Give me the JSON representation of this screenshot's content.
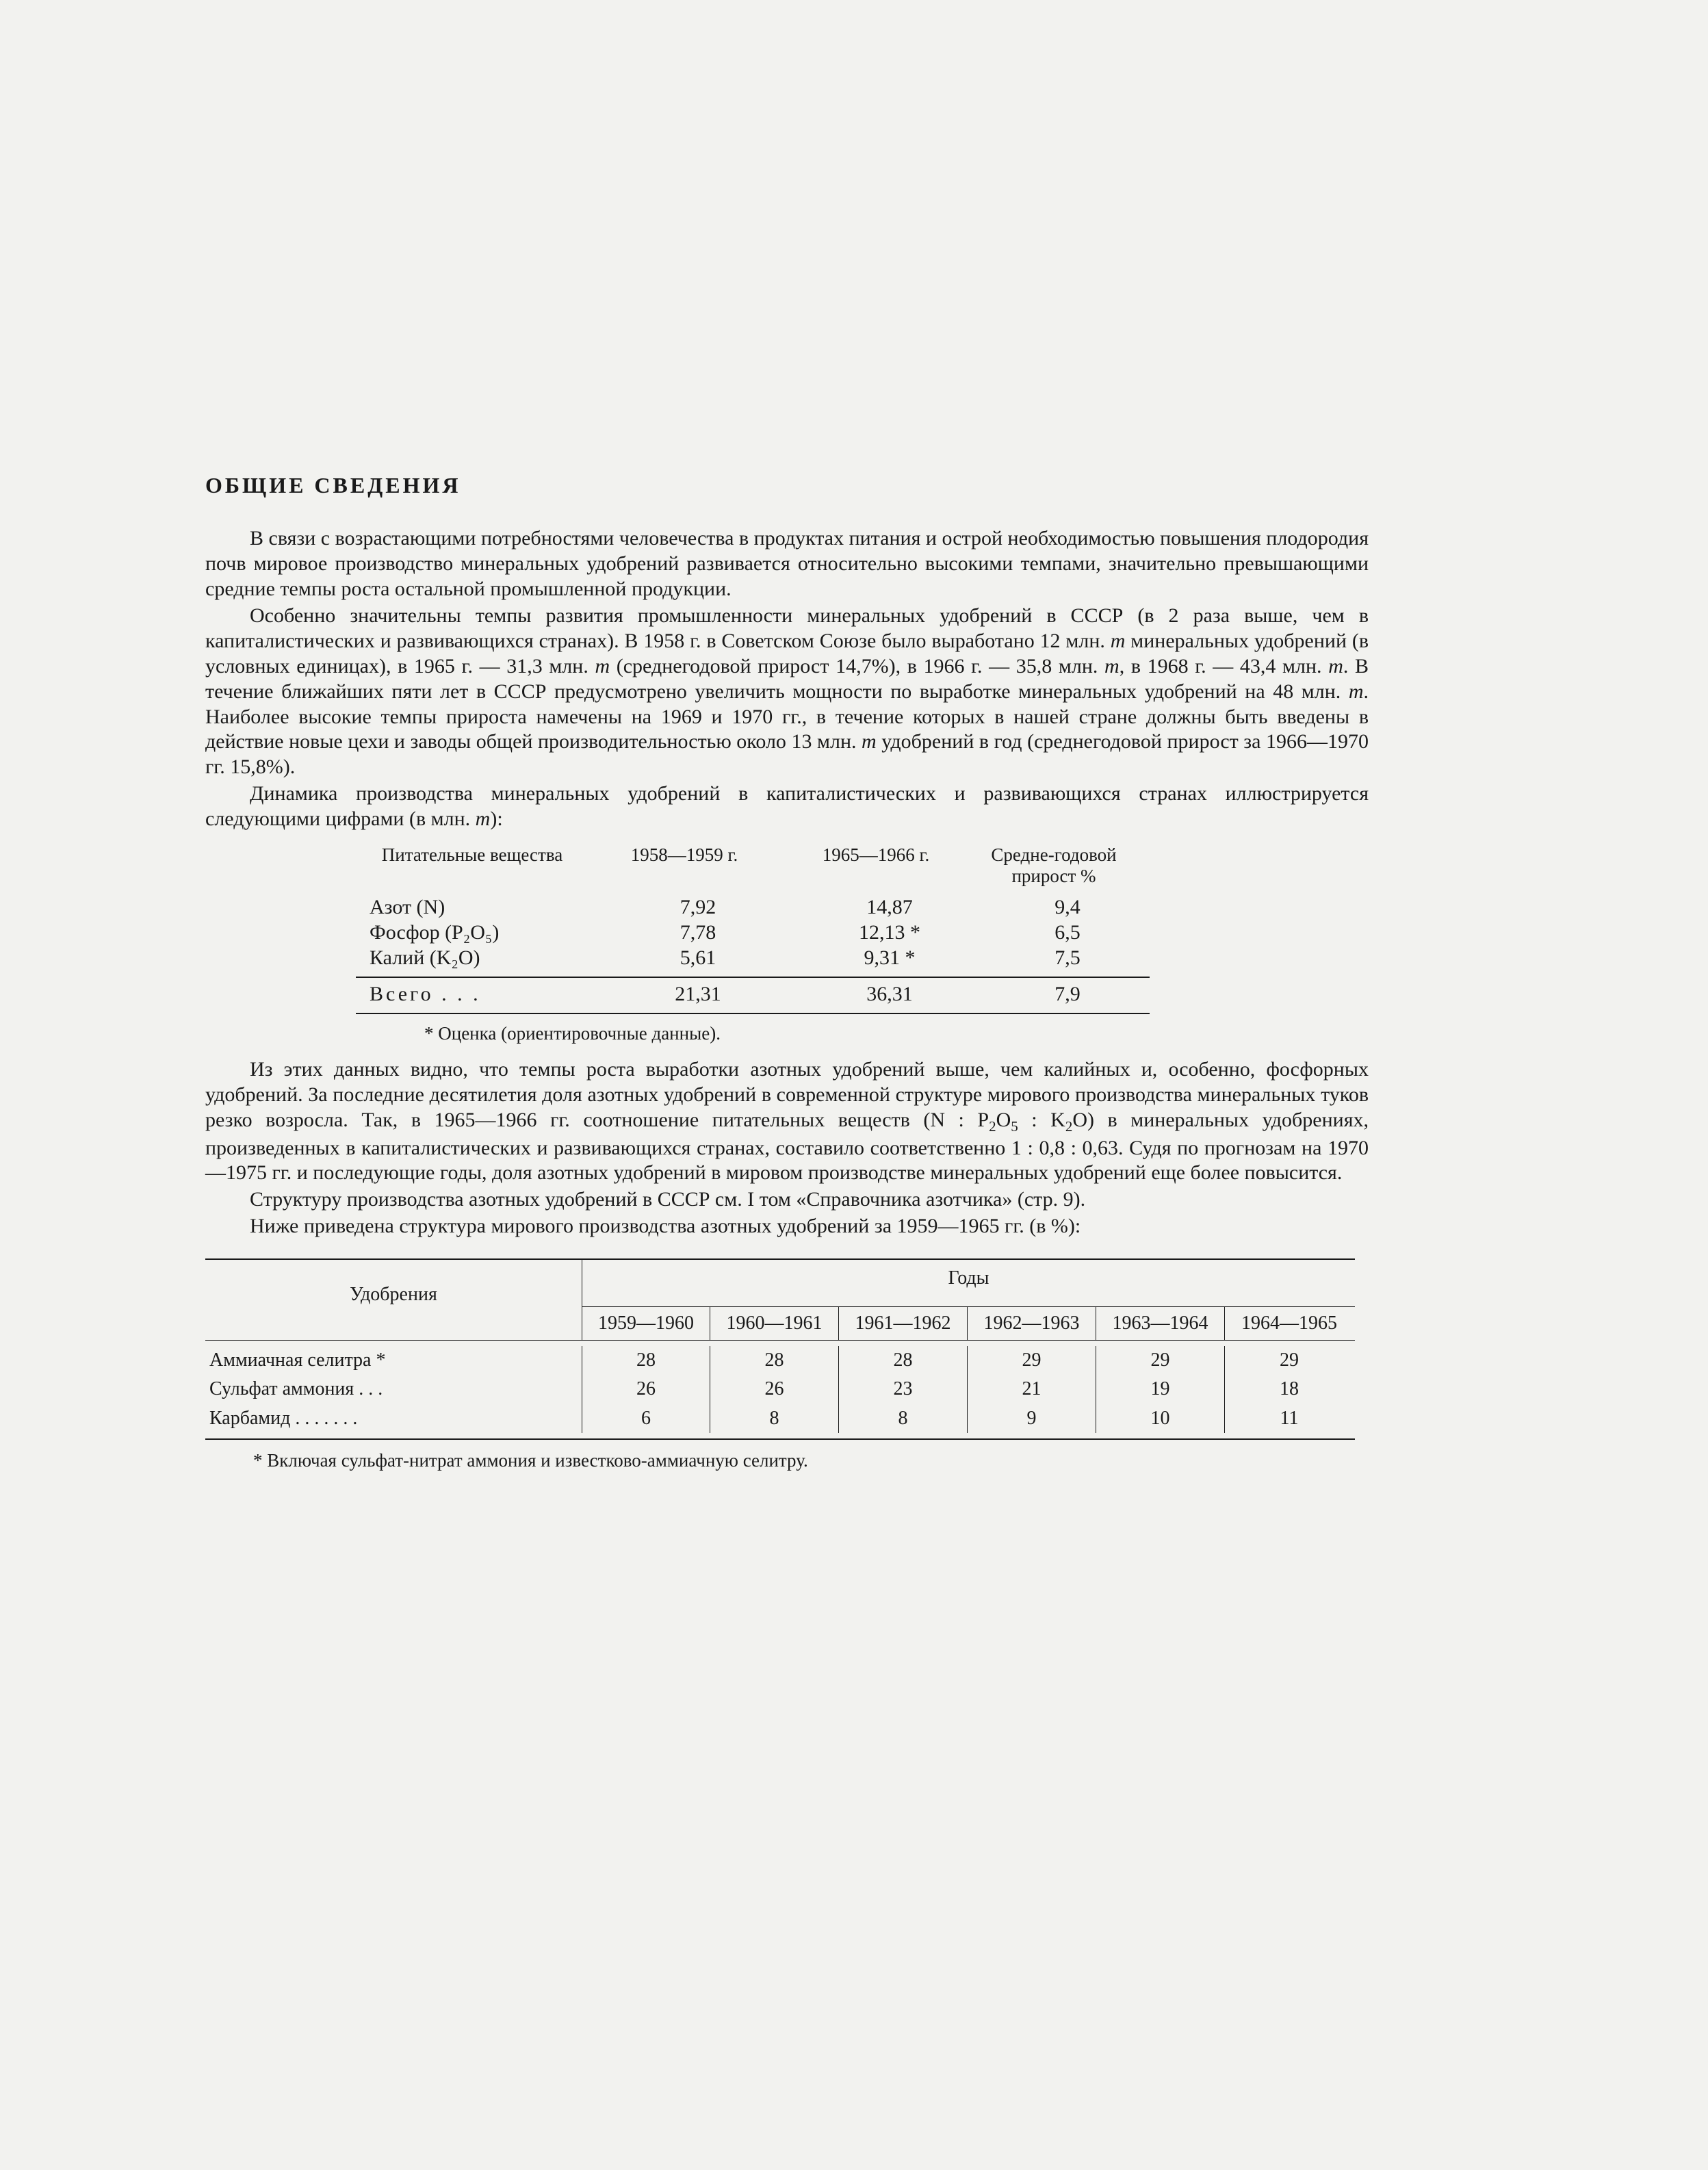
{
  "heading": "ОБЩИЕ СВЕДЕНИЯ",
  "para1": "В связи с возрастающими потребностями человечества в продуктах питания и острой необходимостью повышения плодородия почв мировое производство минеральных удобрений развивается относительно высокими темпами, значительно превышающими средние темпы роста остальной промышленной продукции.",
  "para2a": "Особенно значительны темпы развития промышленности минеральных удобрений в СССР (в 2 раза выше, чем в капиталистических и развивающихся странах). В 1958 г. в Советском Союзе было выработано 12 млн. ",
  "para2_ital_m1": "m",
  "para2b": " минеральных удобрений (в условных единицах), в 1965 г. — 31,3 млн. ",
  "para2_ital_m2": "m",
  "para2c": " (среднегодовой прирост 14,7%), в 1966 г. — 35,8 млн. ",
  "para2_ital_m3": "m",
  "para2d": ", в 1968 г. — 43,4 млн. ",
  "para2_ital_m4": "m",
  "para2e": ". В течение ближайших пяти лет в СССР предусмотрено увеличить мощности по выработке минеральных удобрений на 48 млн. ",
  "para2_ital_m5": "m",
  "para2f": ". Наиболее высокие темпы прироста намечены на 1969 и 1970 гг., в течение которых в нашей стране должны быть введены в действие новые цехи и заводы общей производительностью около 13 млн. ",
  "para2_ital_m6": "m",
  "para2g": " удобрений в год (среднегодовой прирост за 1966—1970 гг. 15,8%).",
  "para3a": "Динамика производства минеральных удобрений в капиталистических и развивающихся странах иллюстрируется следующими цифрами (в млн. ",
  "para3_ital_m": "m",
  "para3b": "):",
  "table1": {
    "hdr_c0": "Питательные вещества",
    "hdr_c1": "1958—1959 г.",
    "hdr_c2": "1965—1966 г.",
    "hdr_c3": "Средне-годовой прирост %",
    "rows": [
      {
        "name": "Азот (N)",
        "v1": "7,92",
        "v2": "14,87",
        "v3": "9,4"
      },
      {
        "name_html": "Фосфор (P₂O₅)",
        "v1": "7,78",
        "v2": "12,13 *",
        "v3": "6,5"
      },
      {
        "name_html": "Калий (K₂O)",
        "v1": "5,61",
        "v2": "9,31 *",
        "v3": "7,5"
      }
    ],
    "total_label": "Всего . . .",
    "total_v1": "21,31",
    "total_v2": "36,31",
    "total_v3": "7,9"
  },
  "footnote1": "* Оценка (ориентировочные данные).",
  "para4a": "Из этих данных видно, что темпы роста выработки азотных удобрений выше, чем калийных и, особенно, фосфорных удобрений. За последние десятилетия доля азотных удобрений в современной структуре мирового производства минеральных туков резко возросла. Так, в 1965—1966 гг. соотношение питательных веществ (N : P",
  "para4_sub1": "2",
  "para4b": "O",
  "para4_sub2": "5",
  "para4c": " : K",
  "para4_sub3": "2",
  "para4d": "O) в минеральных удобрениях, произведенных в капиталистических и развивающихся странах, составило соответственно 1 : 0,8 : 0,63. Судя по прогнозам на 1970—1975 гг. и последующие годы, доля азотных удобрений в мировом производстве минеральных удобрений еще более повысится.",
  "para5": "Структуру производства азотных удобрений в СССР см. I том «Справочника азотчика» (стр. 9).",
  "para6": "Ниже приведена структура мирового производства азотных удобрений за 1959—1965 гг. (в %):",
  "table2": {
    "hdr_name": "Удобрения",
    "hdr_years": "Годы",
    "years": [
      "1959—1960",
      "1960—1961",
      "1961—1962",
      "1962—1963",
      "1963—1964",
      "1964—1965"
    ],
    "rows": [
      {
        "name": "Аммиачная селитра *",
        "v": [
          "28",
          "28",
          "28",
          "29",
          "29",
          "29"
        ]
      },
      {
        "name": "Сульфат аммония . . .",
        "v": [
          "26",
          "26",
          "23",
          "21",
          "19",
          "18"
        ]
      },
      {
        "name": "Карбамид . . . . . . .",
        "v": [
          "6",
          "8",
          "8",
          "9",
          "10",
          "11"
        ]
      }
    ]
  },
  "footnote2": "* Включая сульфат-нитрат аммония и известково-аммиачную селитру."
}
